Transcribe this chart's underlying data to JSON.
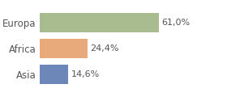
{
  "categories": [
    "Asia",
    "Africa",
    "Europa"
  ],
  "values": [
    14.6,
    24.4,
    61.0
  ],
  "labels": [
    "14,6%",
    "24,4%",
    "61,0%"
  ],
  "bar_colors": [
    "#6d87b8",
    "#e8aa7a",
    "#a8bc8f"
  ],
  "background_color": "#ffffff",
  "xlim": [
    0,
    95
  ],
  "bar_height": 0.75,
  "label_fontsize": 8,
  "tick_fontsize": 8.5
}
